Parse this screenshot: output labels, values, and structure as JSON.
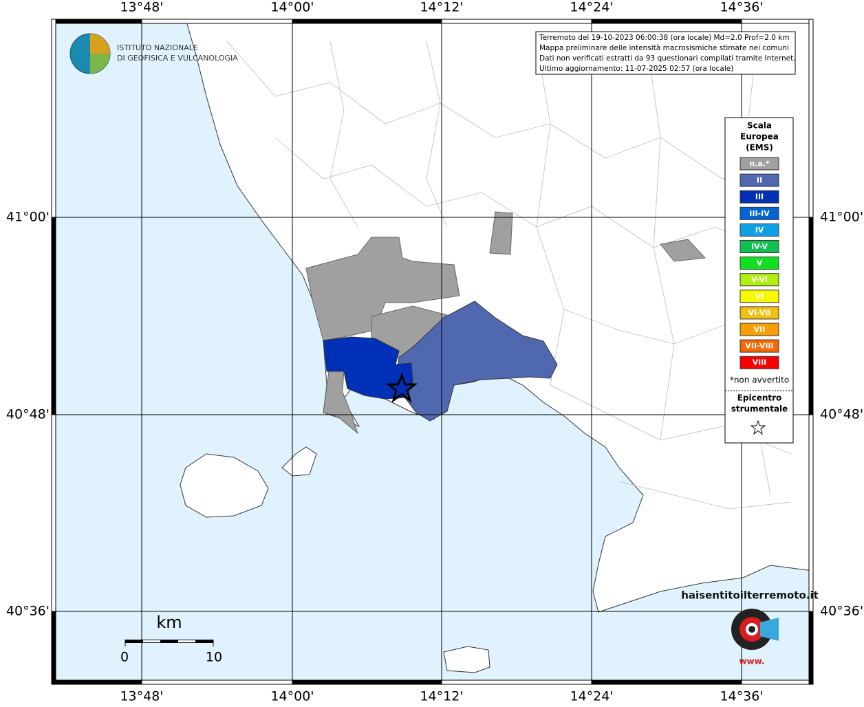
{
  "axes": {
    "lon_labels": [
      "13°48'",
      "14°00'",
      "14°12'",
      "14°24'",
      "14°36'"
    ],
    "lat_labels": [
      "41°00'",
      "40°48'",
      "40°36'"
    ]
  },
  "logo": {
    "line1": "ISTITUTO NAZIONALE",
    "line2": "DI GEOFISICA E VULCANOLOGIA"
  },
  "info": {
    "lines": [
      "Terremoto del 19-10-2023 06:00:38 (ora locale) Md=2.0 Prof=2.0 km",
      "Mappa preliminare delle intensità macrosismiche stimate nei comuni",
      "Dati non verificati estratti da 93 questionari compilati tramite Internet.",
      "Ultimo aggiornamento: 11-07-2025 02:57 (ora locale)"
    ]
  },
  "legend": {
    "title": [
      "Scala",
      "Europea",
      "(EMS)"
    ],
    "items": [
      {
        "label": "n.a.*",
        "color": "#a0a0a0"
      },
      {
        "label": "II",
        "color": "#5068b0"
      },
      {
        "label": "III",
        "color": "#0030b8"
      },
      {
        "label": "III-IV",
        "color": "#0064d4"
      },
      {
        "label": "IV",
        "color": "#10a0e8"
      },
      {
        "label": "IV-V",
        "color": "#10c050"
      },
      {
        "label": "V",
        "color": "#10e020"
      },
      {
        "label": "V-VI",
        "color": "#b0f010"
      },
      {
        "label": "VI",
        "color": "#f8f800"
      },
      {
        "label": "VI-VII",
        "color": "#f0c010"
      },
      {
        "label": "VII",
        "color": "#f8a000"
      },
      {
        "label": "VII-VIII",
        "color": "#f86800"
      },
      {
        "label": "VIII",
        "color": "#f80000"
      }
    ],
    "note": "*non avvertito",
    "epicenter": [
      "Epicentro",
      "strumentale"
    ]
  },
  "scale": {
    "unit": "km",
    "start": "0",
    "end": "10"
  },
  "site": {
    "name": "haisentitoilterremoto.it",
    "prefix": "www."
  }
}
